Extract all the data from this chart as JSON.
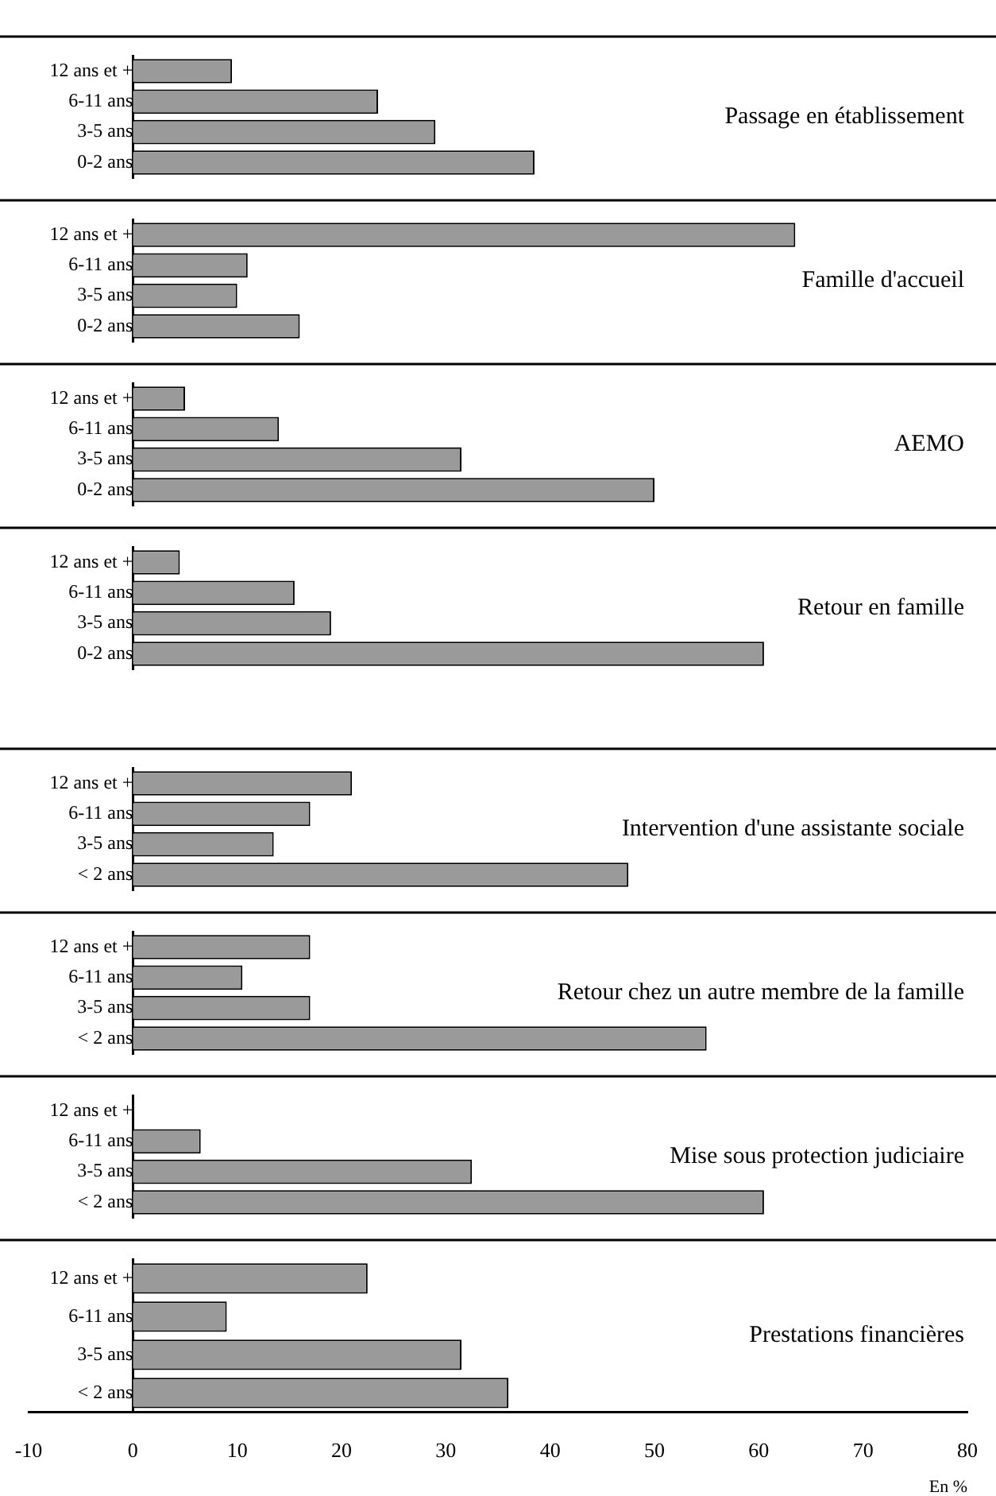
{
  "chart_data": [
    {
      "type": "bar",
      "orientation": "horizontal",
      "title": "Passage en établissement",
      "categories": [
        "12 ans et +",
        "6-11 ans",
        "3-5 ans",
        "0-2 ans"
      ],
      "values": [
        9.5,
        23.5,
        29,
        38.5
      ],
      "color": "#9a9a9a",
      "xlim": [
        -10,
        80
      ],
      "tick_labels": "y"
    },
    {
      "type": "bar",
      "orientation": "horizontal",
      "title": "Famille d'accueil",
      "categories": [
        "12 ans et +",
        "6-11 ans",
        "3-5 ans",
        "0-2 ans"
      ],
      "values": [
        63.5,
        11,
        10,
        16
      ],
      "color": "#9a9a9a",
      "xlim": [
        -10,
        80
      ],
      "tick_labels": "y"
    },
    {
      "type": "bar",
      "orientation": "horizontal",
      "title": "AEMO",
      "categories": [
        "12 ans et +",
        "6-11 ans",
        "3-5 ans",
        "0-2 ans"
      ],
      "values": [
        5,
        14,
        31.5,
        50
      ],
      "color": "#9a9a9a",
      "xlim": [
        -10,
        80
      ],
      "tick_labels": "y"
    },
    {
      "type": "bar",
      "orientation": "horizontal",
      "title": "Retour en famille",
      "categories": [
        "12 ans et +",
        "6-11 ans",
        "3-5 ans",
        "0-2 ans"
      ],
      "values": [
        4.5,
        15.5,
        19,
        60.5
      ],
      "color": "#9a9a9a",
      "xlim": [
        -10,
        80
      ],
      "tick_labels": "y"
    },
    {
      "type": "bar",
      "orientation": "horizontal",
      "title": "Intervention d'une assistante sociale",
      "categories": [
        "12 ans et +",
        "6-11 ans",
        "3-5 ans",
        "< 2 ans"
      ],
      "values": [
        21,
        17,
        13.5,
        47.5
      ],
      "color": "#9a9a9a",
      "xlim": [
        -10,
        80
      ],
      "tick_labels": "y"
    },
    {
      "type": "bar",
      "orientation": "horizontal",
      "title": "Retour chez un autre membre de la famille",
      "categories": [
        "12 ans et +",
        "6-11 ans",
        "3-5 ans",
        "< 2 ans"
      ],
      "values": [
        17,
        10.5,
        17,
        55
      ],
      "color": "#9a9a9a",
      "xlim": [
        -10,
        80
      ],
      "tick_labels": "y"
    },
    {
      "type": "bar",
      "orientation": "horizontal",
      "title": "Mise sous protection judiciaire",
      "categories": [
        "12 ans et +",
        "6-11 ans",
        "3-5 ans",
        "< 2 ans"
      ],
      "values": [
        0,
        6.5,
        32.5,
        60.5
      ],
      "color": "#9a9a9a",
      "xlim": [
        -10,
        80
      ],
      "tick_labels": "y"
    },
    {
      "type": "bar",
      "orientation": "horizontal",
      "title": "Prestations financières",
      "categories": [
        "12 ans et +",
        "6-11 ans",
        "3-5 ans",
        "< 2 ans"
      ],
      "values": [
        22.5,
        9,
        31.5,
        36
      ],
      "color": "#9a9a9a",
      "xlim": [
        -10,
        80
      ],
      "xticks": [
        -10,
        0,
        10,
        20,
        30,
        40,
        50,
        60,
        70,
        80
      ],
      "xlabel": "En %"
    }
  ]
}
